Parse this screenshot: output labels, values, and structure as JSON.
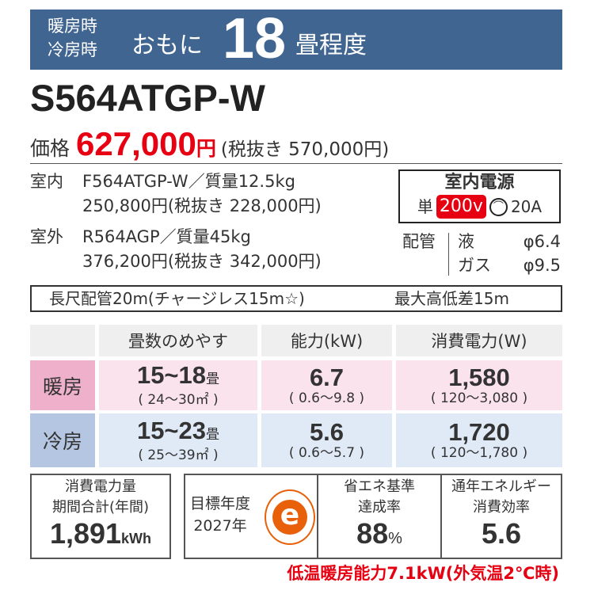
{
  "banner": {
    "line1": "暖房時",
    "line2": "冷房時",
    "prefix": "おもに",
    "tatami": "18",
    "suffix": "畳程度",
    "color": "#3f6590"
  },
  "model": "S564ATGP-W",
  "price": {
    "label": "価格",
    "value": "627,000",
    "yen": "円",
    "tax_excluded": "(税抜き 570,000円)",
    "color": "#e60012"
  },
  "indoor": {
    "label": "室内",
    "model_weight": "F564ATGP-W／質量12.5kg",
    "price": "250,800円(税抜き 228,000円)"
  },
  "outdoor": {
    "label": "室外",
    "model_weight": "R564AGP／質量45kg",
    "price": "376,200円(税抜き 342,000円)"
  },
  "power": {
    "title": "室内電源",
    "single": "単",
    "voltage": "200v",
    "plug_icon": "plug-face-icon",
    "ampere": "20A"
  },
  "piping": {
    "label": "配管",
    "liquid_label": "液",
    "liquid": "φ6.4",
    "gas_label": "ガス",
    "gas": "φ9.5"
  },
  "long_pipe": {
    "text": "長尺配管20m(チャージレス15m☆)",
    "height_diff": "最大高低差15m"
  },
  "table": {
    "headers": [
      "畳数のめやす",
      "能力(kW)",
      "消費電力(W)"
    ],
    "rows": [
      {
        "label": "暖房",
        "tatami": "15~18",
        "tatami_unit": "畳",
        "area": "( 24～30㎡ )",
        "capacity": "6.7",
        "capacity_range": "( 0.6～9.8 )",
        "power": "1,580",
        "power_range": "( 120～3,080 )"
      },
      {
        "label": "冷房",
        "tatami": "15~23",
        "tatami_unit": "畳",
        "area": "( 25～39㎡ )",
        "capacity": "5.6",
        "capacity_range": "( 0.6～5.7 )",
        "power": "1,720",
        "power_range": "( 120～1,780 )"
      }
    ]
  },
  "annual": {
    "line1": "消費電力量",
    "line2": "期間合計(年間)",
    "value": "1,891",
    "unit": "kWh"
  },
  "target": {
    "line1": "目標年度",
    "line2": "2027年",
    "mark_letter": "e",
    "mark_color": "#e8600a"
  },
  "achievement": {
    "line1": "省エネ基準",
    "line2": "達成率",
    "value": "88",
    "unit": "%"
  },
  "apf": {
    "line1": "通年エネルギー",
    "line2": "消費効率",
    "value": "5.6"
  },
  "low_temp": "低温暖房能力7.1kW(外気温2℃時)"
}
